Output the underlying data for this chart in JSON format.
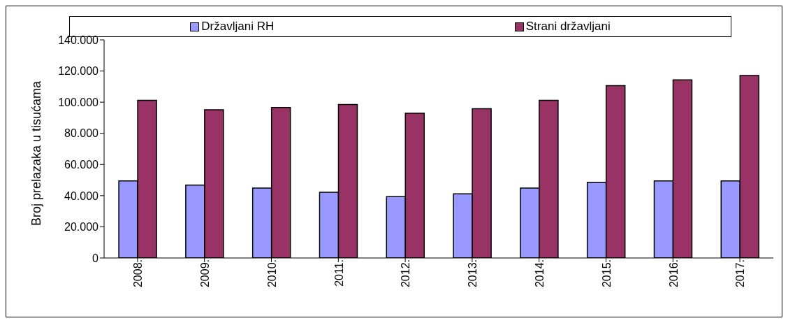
{
  "chart_data": {
    "type": "bar",
    "ylabel": "Broj prelazaka u tisućama",
    "categories": [
      "2008.",
      "2009.",
      "2010.",
      "2011.",
      "2012.",
      "2013.",
      "2014.",
      "2015.",
      "2016.",
      "2017."
    ],
    "series": [
      {
        "name": "Državljani RH",
        "color": "#9999ff",
        "values": [
          49500,
          46800,
          44900,
          42200,
          39400,
          41200,
          44900,
          48600,
          49500,
          49500
        ]
      },
      {
        "name": "Strani državljani",
        "color": "#993366",
        "values": [
          101200,
          95100,
          96600,
          98500,
          92900,
          95800,
          101200,
          110600,
          114300,
          117100
        ]
      }
    ],
    "ylim": [
      0,
      140000
    ],
    "yticks": [
      {
        "value": 0,
        "label": "0"
      },
      {
        "value": 20000,
        "label": "20.000"
      },
      {
        "value": 40000,
        "label": "40.000"
      },
      {
        "value": 60000,
        "label": "60.000"
      },
      {
        "value": 80000,
        "label": "80.000"
      },
      {
        "value": 100000,
        "label": "100.000"
      },
      {
        "value": 120000,
        "label": "120.000"
      },
      {
        "value": 140000,
        "label": "140.000"
      }
    ],
    "legend": "top",
    "grid": false
  }
}
